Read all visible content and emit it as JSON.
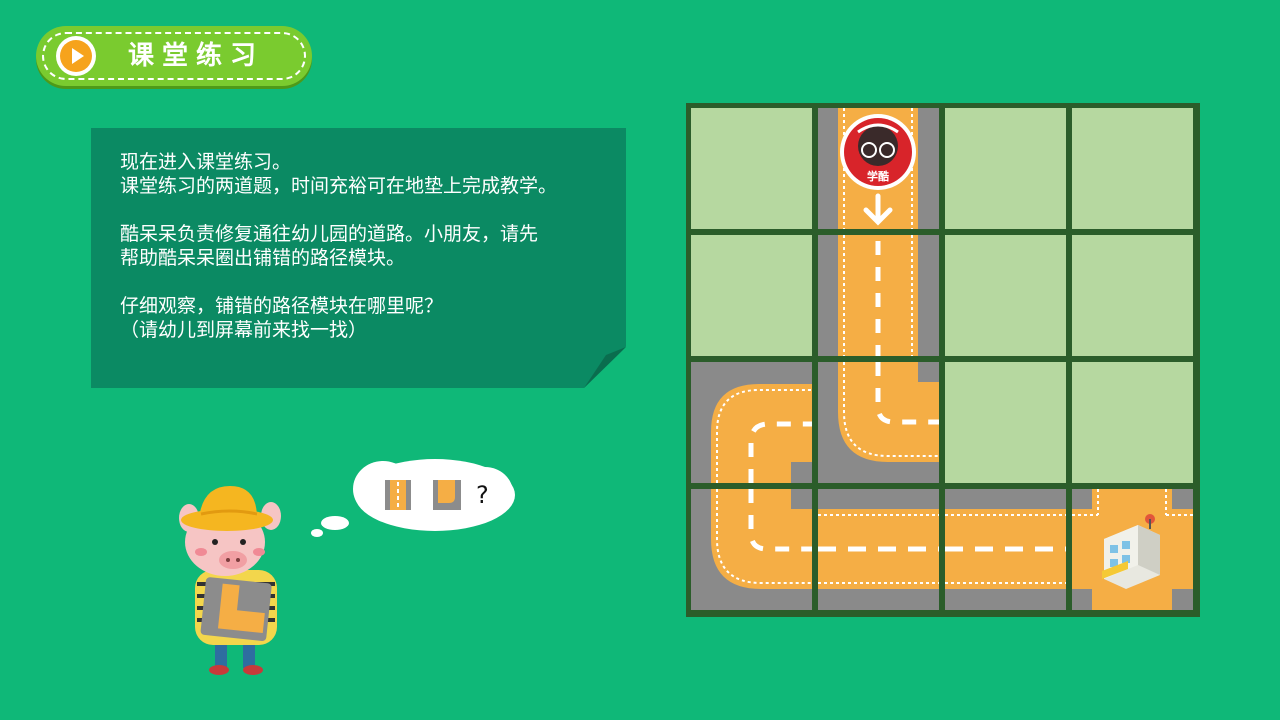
{
  "header": {
    "title": "课堂练习",
    "play_icon": "play-icon"
  },
  "note": {
    "lines": [
      "现在进入课堂练习。",
      "课堂练习的两道题，时间充裕可在地垫上完成教学。",
      "酷呆呆负责修复通往幼儿园的道路。小朋友，请先",
      "帮助酷呆呆圈出铺错的路径模块。",
      "仔细观察，铺错的路径模块在哪里呢？",
      "（请幼儿到屏幕前来找一找）"
    ]
  },
  "bubble": {
    "question_mark": "?"
  },
  "board": {
    "rows": 4,
    "cols": 4,
    "robot_badge_text": "学酷"
  },
  "colors": {
    "background": "#0fb878",
    "road": "#f5ae45",
    "grass": "#b6d8a0",
    "asphalt": "#8a8a8a",
    "border": "#2b5d2a"
  }
}
